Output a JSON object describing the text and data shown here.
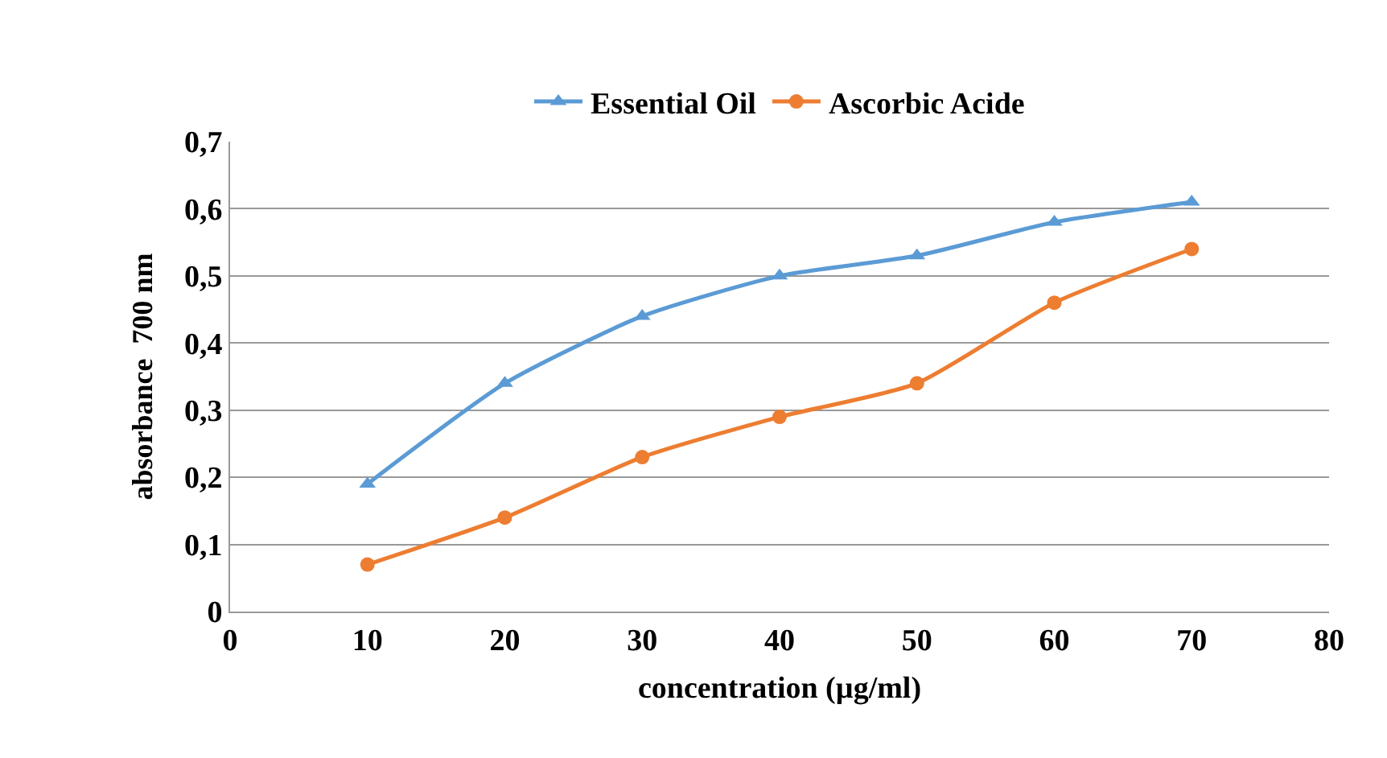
{
  "chart_data": {
    "type": "line",
    "xlabel": "concentration (µg/ml)",
    "ylabel": "absorbance  700 nm",
    "x": [
      10,
      20,
      30,
      40,
      50,
      60,
      70
    ],
    "series": [
      {
        "name": "Essential Oil",
        "color": "#5b9bd5",
        "marker": "triangle",
        "values": [
          0.19,
          0.34,
          0.44,
          0.5,
          0.53,
          0.58,
          0.61
        ]
      },
      {
        "name": "Ascorbic Acide",
        "color": "#ed7d31",
        "marker": "circle",
        "values": [
          0.07,
          0.14,
          0.23,
          0.29,
          0.34,
          0.46,
          0.54
        ]
      }
    ],
    "xlim": [
      0,
      80
    ],
    "xticks": [
      0,
      10,
      20,
      30,
      40,
      50,
      60,
      70,
      80
    ],
    "ylim": [
      0,
      0.7
    ],
    "yticks": [
      0,
      {
        "value": 0.1,
        "label": "0,1"
      },
      {
        "value": 0.2,
        "label": "0,2"
      },
      {
        "value": 0.3,
        "label": "0,3"
      },
      {
        "value": 0.4,
        "label": "0,4"
      },
      {
        "value": 0.5,
        "label": "0,5"
      },
      {
        "value": 0.6,
        "label": "0,6"
      },
      {
        "value": 0.7,
        "label": "0,7"
      }
    ],
    "grid": "y",
    "legend": "top",
    "line_style": "solid"
  }
}
